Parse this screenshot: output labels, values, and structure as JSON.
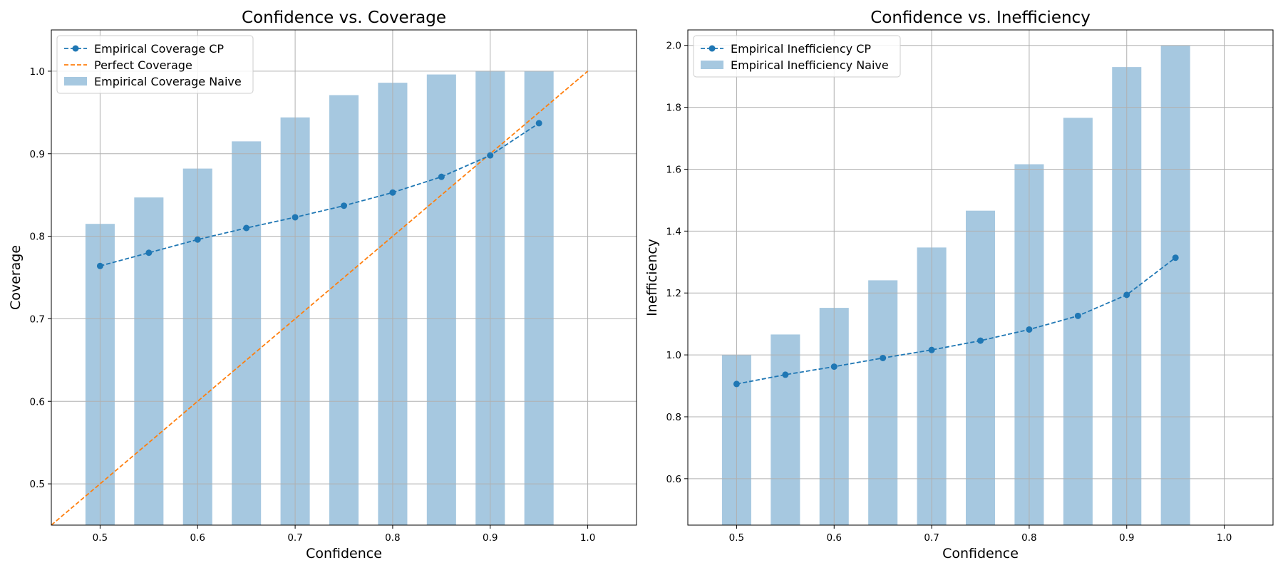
{
  "colors": {
    "cp": "#1f77b4",
    "bar": "#a6c8e0",
    "perfect": "#ff7f0e",
    "grid": "#b0b0b0"
  },
  "chart_data": [
    {
      "type": "bar",
      "title": "Confidence vs. Coverage",
      "xlabel": "Confidence",
      "ylabel": "Coverage",
      "xlim": [
        0.45,
        1.05
      ],
      "ylim": [
        0.45,
        1.05
      ],
      "xticks": [
        "0.5",
        "0.6",
        "0.7",
        "0.8",
        "0.9",
        "1.0"
      ],
      "yticks": [
        "0.5",
        "0.6",
        "0.7",
        "0.8",
        "0.9",
        "1.0"
      ],
      "grid": true,
      "legend_position": "upper-left",
      "bar_width": 0.03,
      "x": [
        0.5,
        0.55,
        0.6,
        0.65,
        0.7,
        0.75,
        0.8,
        0.85,
        0.9,
        0.95
      ],
      "bars": {
        "name": "Empirical Coverage Naive",
        "values": [
          0.815,
          0.847,
          0.882,
          0.915,
          0.944,
          0.971,
          0.986,
          0.996,
          1.0,
          1.0
        ]
      },
      "line": {
        "name": "Empirical Coverage CP",
        "values": [
          0.764,
          0.78,
          0.796,
          0.81,
          0.823,
          0.837,
          0.853,
          0.872,
          0.898,
          0.937
        ]
      },
      "reference": {
        "name": "Perfect Coverage",
        "x": [
          0.45,
          1.0
        ],
        "y": [
          0.45,
          1.0
        ]
      }
    },
    {
      "type": "bar",
      "title": "Confidence vs. Inefficiency",
      "xlabel": "Confidence",
      "ylabel": "Inefficiency",
      "xlim": [
        0.45,
        1.05
      ],
      "ylim": [
        0.45,
        2.05
      ],
      "xticks": [
        "0.5",
        "0.6",
        "0.7",
        "0.8",
        "0.9",
        "1.0"
      ],
      "yticks": [
        "0.6",
        "0.8",
        "1.0",
        "1.2",
        "1.4",
        "1.6",
        "1.8",
        "2.0"
      ],
      "grid": true,
      "legend_position": "upper-left",
      "bar_width": 0.03,
      "x": [
        0.5,
        0.55,
        0.6,
        0.65,
        0.7,
        0.75,
        0.8,
        0.85,
        0.9,
        0.95
      ],
      "bars": {
        "name": "Empirical Inefficiency Naive",
        "values": [
          1.0,
          1.066,
          1.152,
          1.241,
          1.347,
          1.466,
          1.616,
          1.766,
          1.93,
          2.0
        ]
      },
      "line": {
        "name": "Empirical Inefficiency CP",
        "values": [
          0.906,
          0.936,
          0.962,
          0.99,
          1.016,
          1.046,
          1.082,
          1.126,
          1.194,
          1.314
        ]
      }
    }
  ]
}
